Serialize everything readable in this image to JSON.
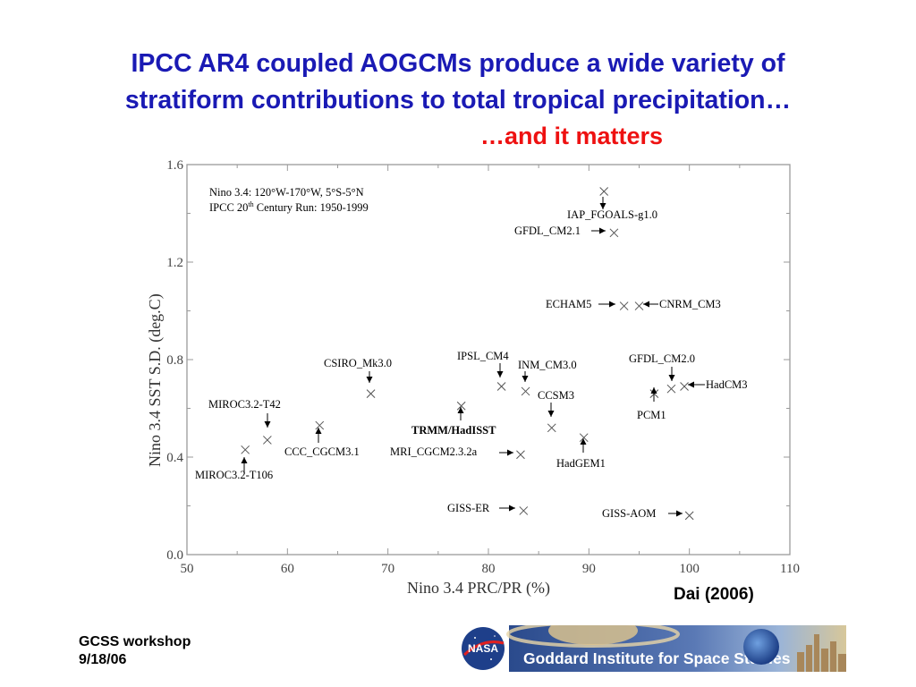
{
  "slide": {
    "title_line1": "IPCC AR4 coupled AOGCMs produce a wide variety of",
    "title_line2": "stratiform contributions to total tropical precipitation…",
    "subtitle": "…and it matters",
    "citation": "Dai (2006)",
    "footer_line1": "GCSS workshop",
    "footer_line2": "9/18/06",
    "logo_text": "NASA",
    "banner_text": "Goddard Institute for Space Studies",
    "colors": {
      "title": "#1a1ab4",
      "subtitle": "#ee1111",
      "banner_blue": "#1e3f8a"
    }
  },
  "chart_data": {
    "type": "scatter",
    "xlabel": "Nino 3.4 PRC/PR (%)",
    "ylabel": "Nino 3.4 SST S.D. (deg.C)",
    "xlim": [
      50,
      110
    ],
    "ylim": [
      0.0,
      1.6
    ],
    "xticks": [
      "50",
      "60",
      "70",
      "80",
      "90",
      "100",
      "110"
    ],
    "yticks": [
      "0.0",
      "0.4",
      "0.8",
      "1.2",
      "1.6"
    ],
    "annotation_line1": "Nino 3.4: 120°W-170°W, 5°S-5°N",
    "annotation_line2_pre": "IPCC 20",
    "annotation_line2_sup": "th",
    "annotation_line2_post": " Century Run: 1950-1999",
    "points": [
      {
        "label": "IAP_FGOALS-g1.0",
        "x": 91.5,
        "y": 1.49
      },
      {
        "label": "GFDL_CM2.1",
        "x": 92.5,
        "y": 1.32
      },
      {
        "label": "ECHAM5",
        "x": 93.5,
        "y": 1.02
      },
      {
        "label": "CNRM_CM3",
        "x": 95.0,
        "y": 1.02
      },
      {
        "label": "GFDL_CM2.0",
        "x": 98.2,
        "y": 0.68
      },
      {
        "label": "HadCM3",
        "x": 99.5,
        "y": 0.69
      },
      {
        "label": "PCM1",
        "x": 96.5,
        "y": 0.66
      },
      {
        "label": "IPSL_CM4",
        "x": 81.3,
        "y": 0.69
      },
      {
        "label": "INM_CM3.0",
        "x": 83.7,
        "y": 0.67
      },
      {
        "label": "CCSM3",
        "x": 86.3,
        "y": 0.52
      },
      {
        "label": "HadGEM1",
        "x": 89.5,
        "y": 0.48
      },
      {
        "label": "TRMM/HadISST",
        "x": 77.3,
        "y": 0.61
      },
      {
        "label": "MRI_CGCM2.3.2a",
        "x": 83.2,
        "y": 0.41
      },
      {
        "label": "CSIRO_Mk3.0",
        "x": 68.3,
        "y": 0.66
      },
      {
        "label": "CCC_CGCM3.1",
        "x": 63.2,
        "y": 0.53
      },
      {
        "label": "MIROC3.2-T42",
        "x": 58.0,
        "y": 0.47
      },
      {
        "label": "MIROC3.2-T106",
        "x": 55.8,
        "y": 0.43
      },
      {
        "label": "GISS-ER",
        "x": 83.5,
        "y": 0.18
      },
      {
        "label": "GISS-AOM",
        "x": 100.0,
        "y": 0.16
      }
    ]
  }
}
